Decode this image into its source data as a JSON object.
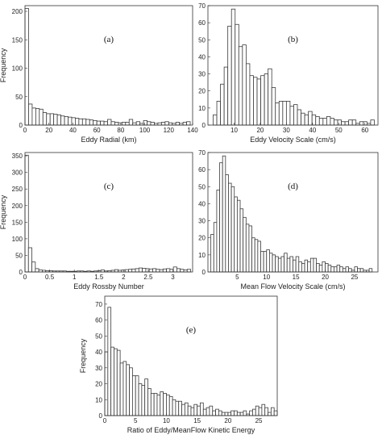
{
  "figure": {
    "background": "#ffffff",
    "bar_fill": "#ffffff",
    "bar_stroke": "#3a3a3a"
  },
  "chart_data": [
    {
      "type": "bar",
      "panel_label": "(a)",
      "xlabel": "Eddy Radial (km)",
      "ylabel": "Frequency",
      "xlim": [
        0,
        140
      ],
      "ylim": [
        0,
        210
      ],
      "xticks": [
        0,
        20,
        40,
        60,
        80,
        100,
        120,
        140
      ],
      "yticks": [
        0,
        50,
        100,
        150,
        200
      ],
      "bar_width": 3,
      "bin_start": 0,
      "values": [
        205,
        37,
        30,
        29,
        28,
        22,
        20,
        20,
        19,
        18,
        16,
        15,
        14,
        13,
        12,
        11,
        11,
        10,
        9,
        8,
        7,
        7,
        6,
        10,
        6,
        5,
        4,
        5,
        5,
        10,
        4,
        6,
        3,
        8,
        6,
        5,
        3,
        4,
        5,
        6,
        4,
        3,
        5,
        3,
        5,
        6
      ]
    },
    {
      "type": "bar",
      "panel_label": "(b)",
      "xlabel": "Eddy Velocity Scale (cm/s)",
      "ylabel": "",
      "xlim": [
        0,
        65
      ],
      "ylim": [
        0,
        70
      ],
      "xticks": [
        10,
        20,
        30,
        40,
        50,
        60
      ],
      "yticks": [
        0,
        10,
        20,
        30,
        40,
        50,
        60,
        70
      ],
      "bar_width": 1.4,
      "bin_start": 2,
      "values": [
        6,
        14,
        24,
        34,
        58,
        68,
        59,
        46,
        47,
        36,
        29,
        28,
        27,
        29,
        30,
        33,
        22,
        13,
        14,
        14,
        14,
        11,
        12,
        9,
        7,
        6,
        8,
        6,
        5,
        4,
        4,
        5,
        4,
        3,
        3,
        2,
        2,
        3,
        3,
        1,
        2,
        2,
        1,
        3
      ]
    },
    {
      "type": "bar",
      "panel_label": "(c)",
      "xlabel": "Eddy Rossby Number",
      "ylabel": "Frequency",
      "xlim": [
        0,
        3.4
      ],
      "ylim": [
        0,
        360
      ],
      "xticks": [
        0,
        0.5,
        1,
        1.5,
        2,
        2.5,
        3
      ],
      "yticks": [
        0,
        50,
        100,
        150,
        200,
        250,
        300,
        350
      ],
      "bar_width": 0.07,
      "bin_start": 0.0,
      "values": [
        352,
        73,
        30,
        10,
        6,
        5,
        4,
        4,
        3,
        3,
        3,
        3,
        2,
        2,
        2,
        3,
        3,
        2,
        3,
        2,
        3,
        4,
        6,
        3,
        4,
        5,
        7,
        5,
        6,
        7,
        8,
        9,
        10,
        12,
        11,
        10,
        9,
        10,
        8,
        7,
        9,
        10,
        8,
        15,
        10,
        8,
        6,
        8
      ]
    },
    {
      "type": "bar",
      "panel_label": "(d)",
      "xlabel": "Mean Flow Velocity Scale (cm/s)",
      "ylabel": "",
      "xlim": [
        0,
        29
      ],
      "ylim": [
        0,
        70
      ],
      "xticks": [
        5,
        10,
        15,
        20,
        25
      ],
      "yticks": [
        0,
        10,
        20,
        30,
        40,
        50,
        60,
        70
      ],
      "bar_width": 0.5,
      "bin_start": 0.5,
      "values": [
        22,
        29,
        48,
        64,
        68,
        57,
        52,
        50,
        44,
        42,
        37,
        32,
        28,
        27,
        20,
        19,
        18,
        12,
        12,
        13,
        11,
        10,
        9,
        8,
        9,
        11,
        8,
        9,
        7,
        9,
        6,
        5,
        7,
        6,
        8,
        8,
        5,
        4,
        6,
        5,
        4,
        3,
        3,
        4,
        3,
        2,
        3,
        2,
        1,
        3,
        2,
        2,
        1,
        1,
        2
      ]
    },
    {
      "type": "bar",
      "panel_label": "(e)",
      "xlabel": "Ratio of Eddy/MeanFlow Kinetic Energy",
      "ylabel": "Frequency",
      "xlim": [
        0,
        28
      ],
      "ylim": [
        0,
        75
      ],
      "xticks": [
        0,
        5,
        10,
        15,
        20,
        25
      ],
      "yticks": [
        0,
        10,
        20,
        30,
        40,
        50,
        60,
        70
      ],
      "bar_width": 0.5,
      "bin_start": 0.0,
      "values": [
        40,
        68,
        43,
        42,
        41,
        33,
        34,
        32,
        30,
        25,
        25,
        20,
        19,
        23,
        17,
        14,
        14,
        13,
        15,
        14,
        13,
        12,
        10,
        9,
        9,
        7,
        8,
        6,
        5,
        7,
        6,
        8,
        4,
        5,
        6,
        3,
        4,
        3,
        2,
        2,
        2,
        3,
        3,
        2,
        2,
        3,
        1,
        3,
        4,
        6,
        5,
        7,
        5,
        2,
        5,
        3
      ]
    }
  ]
}
